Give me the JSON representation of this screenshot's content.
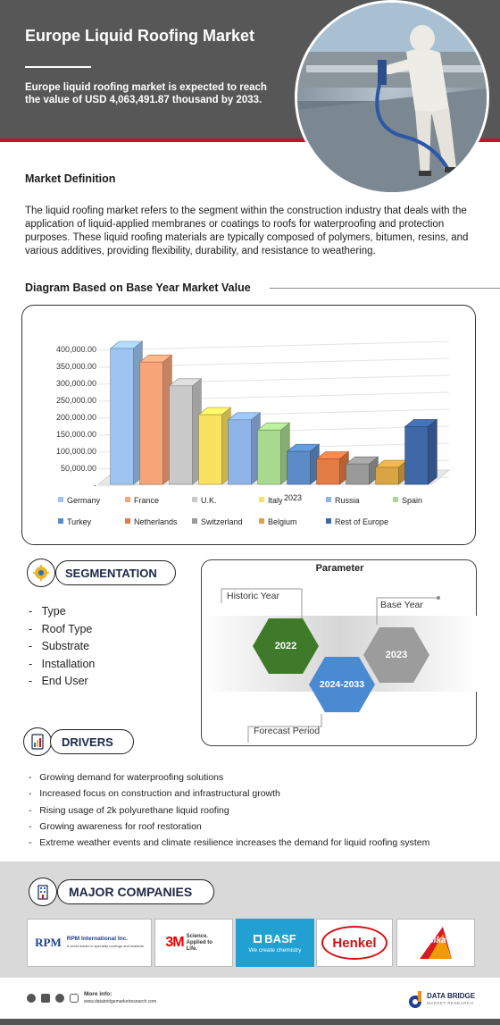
{
  "header": {
    "title": "Europe Liquid Roofing Market",
    "subtitle": "Europe liquid roofing market is expected to reach the value of USD 4,063,491.87 thousand by 2033."
  },
  "market_definition": {
    "heading": "Market Definition",
    "text": "The liquid roofing market refers to the segment within the construction industry that deals with the application of liquid-applied membranes or coatings to roofs for waterproofing and protection purposes. These liquid roofing materials are typically composed of polymers, bitumen, resins, and various additives, providing flexibility, durability, and resistance to weathering."
  },
  "diagram": {
    "heading": "Diagram Based on Base Year Market Value"
  },
  "chart_data": {
    "type": "bar",
    "xlabel": "2023",
    "ylabel": "",
    "ylim": [
      0,
      400000
    ],
    "y_ticks": [
      "400,000.00",
      "350,000.00",
      "300,000.00",
      "250,000.00",
      "200,000.00",
      "150,000.00",
      "100,000.00",
      "50,000.00",
      "-"
    ],
    "categories": [
      "Germany",
      "France",
      "U.K.",
      "Italy",
      "Russia",
      "Spain",
      "Turkey",
      "Netherlands",
      "Switzerland",
      "Belgium",
      "Rest of Europe"
    ],
    "values": [
      400000,
      360000,
      290000,
      205000,
      190000,
      160000,
      97000,
      75000,
      60000,
      50000,
      170000
    ],
    "colors": [
      "#9ec5f1",
      "#f7a479",
      "#c9c9c9",
      "#fbe160",
      "#8fb4e8",
      "#a9d98f",
      "#5b8cc8",
      "#e37b45",
      "#9a9a9a",
      "#d9a544",
      "#3e68a8"
    ],
    "legend_position": "bottom",
    "grid": true
  },
  "segmentation": {
    "heading": "SEGMENTATION",
    "items": [
      "Type",
      "Roof Type",
      "Substrate",
      "Installation",
      "End User"
    ]
  },
  "parameter": {
    "title": "Parameter",
    "historic_label": "Historic Year",
    "historic_year": "2022",
    "forecast_period": "2024-2033",
    "forecast_label": "Forecast Period",
    "base_label": "Base Year",
    "base_year": "2023"
  },
  "drivers": {
    "heading": "DRIVERS",
    "items": [
      "Growing demand for waterproofing solutions",
      "Increased focus on construction and infrastructural growth",
      "Rising usage of 2k polyurethane liquid roofing",
      "Growing awareness for roof restoration",
      "Extreme weather events and climate resilience increases the demand for liquid roofing system"
    ]
  },
  "companies": {
    "heading": "MAJOR COMPANIES",
    "rpm_name": "RPM International Inc.",
    "rpm_tag": "A world leader in specialty coatings and sealants",
    "rpm_mark": "RPM",
    "threem_mark": "3M",
    "threem_tag": "Science. Applied to Life.",
    "basf_mark": "BASF",
    "basf_tag": "We create chemistry",
    "henkel_mark": "Henkel",
    "sika_mark": "Sika"
  },
  "footer": {
    "more_info": "More info:",
    "url": "www.databridgemarketresearch.com",
    "brand": "DATA BRIDGE",
    "brand_sub": "MARKET RESEARCH"
  }
}
